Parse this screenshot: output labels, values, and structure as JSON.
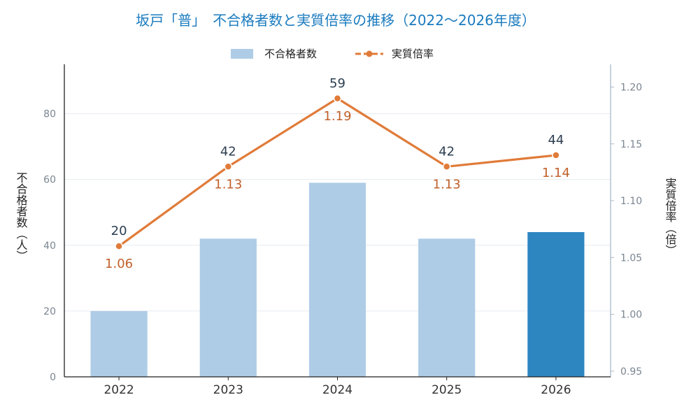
{
  "chart_data": {
    "type": "bar",
    "title": "坂戸「普」　不合格者数と実質倍率の推移（2022〜2026年度）",
    "categories": [
      "2022",
      "2023",
      "2024",
      "2025",
      "2026"
    ],
    "series": [
      {
        "name": "不合格者数",
        "type": "bar",
        "axis": "left",
        "values": [
          20,
          42,
          59,
          42,
          44
        ],
        "data_labels": [
          "20",
          "42",
          "59",
          "42",
          "44"
        ]
      },
      {
        "name": "実質倍率",
        "type": "line",
        "axis": "right",
        "values": [
          1.06,
          1.13,
          1.19,
          1.13,
          1.14
        ],
        "data_labels": [
          "1.06",
          "1.13",
          "1.19",
          "1.13",
          "1.14"
        ]
      }
    ],
    "ylabel": "不合格者数（人）",
    "y2label": "実質倍率（倍）",
    "ylim": [
      0,
      95
    ],
    "yticks": [
      "0",
      "20",
      "40",
      "60",
      "80"
    ],
    "y2lim": [
      0.945,
      1.22
    ],
    "y2ticks": [
      "0.95",
      "1.00",
      "1.05",
      "1.10",
      "1.15",
      "1.20"
    ],
    "grid": true,
    "legend_position": "top-center",
    "highlight_category": "2026",
    "colors": {
      "bar": "#aecce6",
      "bar_highlight": "#2e86c1",
      "line": "#e07b39",
      "bar_label": "#2c3e50",
      "line_label": "#c0602a",
      "title": "#1a7bbf",
      "grid": "#e6ebf1",
      "axis_left": "#222222",
      "axis_right": "#aab8c8",
      "tick": "#7a8591",
      "cat_tick": "#333333",
      "legend_text": "#222222"
    }
  }
}
